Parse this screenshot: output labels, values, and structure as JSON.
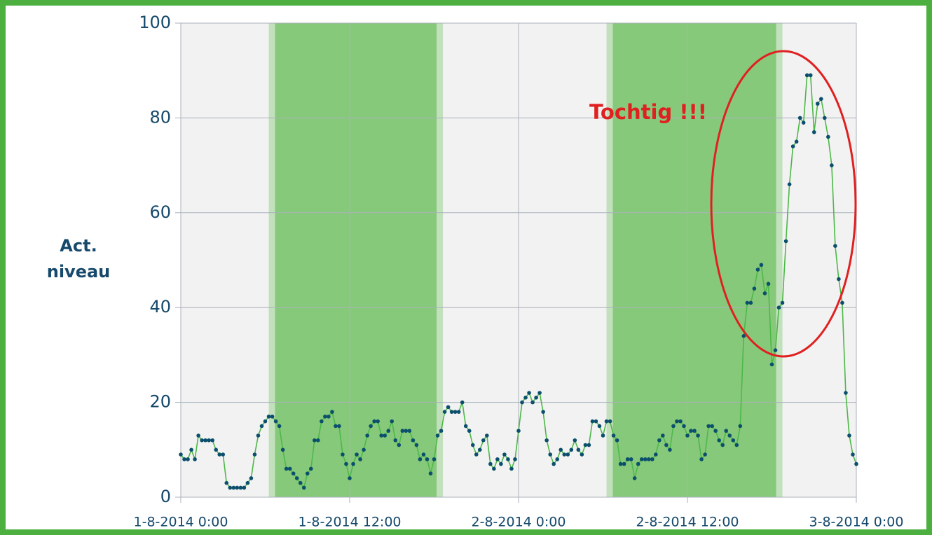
{
  "chart_data": {
    "type": "line",
    "y_label": [
      "Act.",
      "niveau"
    ],
    "annotation": "Tochtig !!!",
    "xlim": [
      0,
      192
    ],
    "xticks": [
      {
        "value": 0,
        "label": "1-8-2014 0:00"
      },
      {
        "value": 48,
        "label": "1-8-2014 12:00"
      },
      {
        "value": 96,
        "label": "2-8-2014 0:00"
      },
      {
        "value": 144,
        "label": "2-8-2014 12:00"
      },
      {
        "value": 192,
        "label": "3-8-2014 0:00"
      }
    ],
    "ylim": [
      0,
      100
    ],
    "yticks": [
      0,
      20,
      40,
      60,
      80,
      100
    ],
    "grid": true,
    "shaded_ranges": [
      [
        25,
        74.5
      ],
      [
        121,
        171
      ]
    ],
    "shade_color": "#87c97a",
    "series": [
      {
        "color": "#4db848",
        "marker_color": "#0b4f6c",
        "values": [
          9,
          8,
          8,
          10,
          8,
          13,
          12,
          12,
          12,
          12,
          10,
          9,
          9,
          3,
          2,
          2,
          2,
          2,
          2,
          3,
          4,
          9,
          13,
          15,
          16,
          17,
          17,
          16,
          15,
          10,
          6,
          6,
          5,
          4,
          3,
          2,
          5,
          6,
          12,
          12,
          16,
          17,
          17,
          18,
          15,
          15,
          9,
          7,
          4,
          7,
          9,
          8,
          10,
          13,
          15,
          16,
          16,
          13,
          13,
          14,
          16,
          12,
          11,
          14,
          14,
          14,
          12,
          11,
          8,
          9,
          8,
          5,
          8,
          13,
          14,
          18,
          19,
          18,
          18,
          18,
          20,
          15,
          14,
          11,
          9,
          10,
          12,
          13,
          7,
          6,
          8,
          7,
          9,
          8,
          6,
          8,
          14,
          20,
          21,
          22,
          20,
          21,
          22,
          18,
          12,
          9,
          7,
          8,
          10,
          9,
          9,
          10,
          12,
          10,
          9,
          11,
          11,
          16,
          16,
          15,
          13,
          16,
          16,
          13,
          12,
          7,
          7,
          8,
          8,
          4,
          7,
          8,
          8,
          8,
          8,
          9,
          12,
          13,
          11,
          10,
          15,
          16,
          16,
          15,
          13,
          14,
          14,
          13,
          8,
          9,
          15,
          15,
          14,
          12,
          11,
          14,
          13,
          12,
          11,
          15,
          34,
          41,
          41,
          44,
          48,
          49,
          43,
          45,
          28,
          31,
          40,
          41,
          54,
          66,
          74,
          75,
          80,
          79,
          89,
          89,
          77,
          83,
          84,
          80,
          76,
          70,
          53,
          46,
          41,
          22,
          13,
          9,
          7
        ]
      }
    ]
  }
}
